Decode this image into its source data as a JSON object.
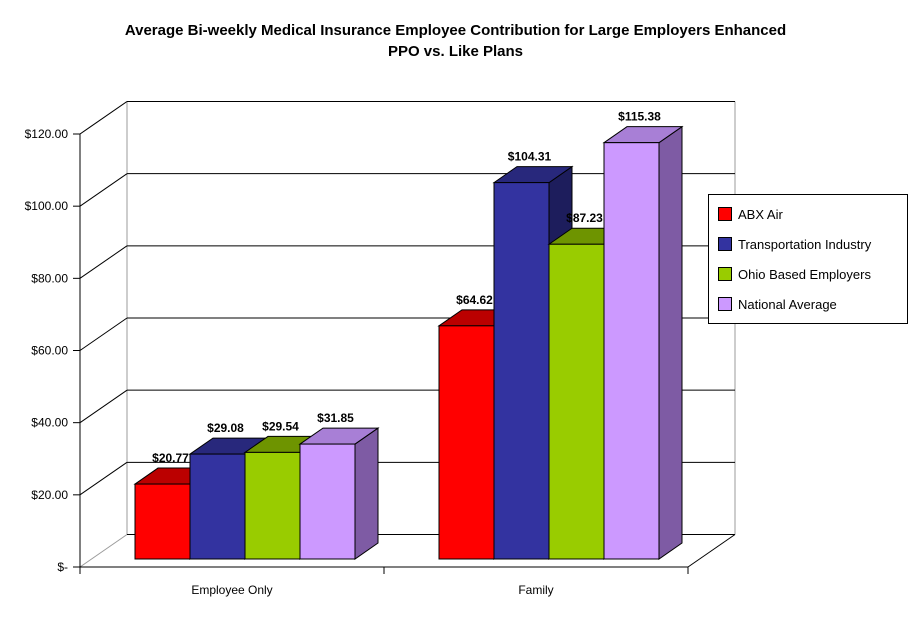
{
  "page": {
    "background": "#FFFFFF"
  },
  "chart_data": {
    "type": "bar",
    "variant": "3d-clustered-column",
    "title": "Average Bi-weekly Medical Insurance Employee Contribution for Large Employers Enhanced PPO vs. Like Plans",
    "title_lines": [
      "Average Bi-weekly Medical Insurance Employee Contribution for Large Employers Enhanced",
      "PPO vs. Like Plans"
    ],
    "categories": [
      "Employee Only",
      "Family"
    ],
    "series": [
      {
        "name": "ABX Air",
        "color": "#FF0000",
        "top_color": "#BB0000",
        "side_color": "#800000",
        "values": [
          20.77,
          64.62
        ],
        "labels": [
          "$20.77",
          "$64.62"
        ]
      },
      {
        "name": "Transportation Industry",
        "color": "#3333A0",
        "top_color": "#28287C",
        "side_color": "#1D1D5C",
        "values": [
          29.08,
          104.31
        ],
        "labels": [
          "$29.08",
          "$104.31"
        ]
      },
      {
        "name": "Ohio Based Employers",
        "color": "#99CC00",
        "top_color": "#6E9400",
        "side_color": "#527000",
        "values": [
          29.54,
          87.23
        ],
        "labels": [
          "$29.54",
          "$87.23"
        ]
      },
      {
        "name": "National Average",
        "color": "#CC99FF",
        "top_color": "#A87FD6",
        "side_color": "#7E5BA4",
        "values": [
          31.85,
          115.38
        ],
        "labels": [
          "$31.85",
          "$115.38"
        ]
      }
    ],
    "xlabel": "",
    "ylabel": "",
    "ylim": [
      0,
      120
    ],
    "ytick_interval": 20,
    "ytick_labels": [
      "$-",
      "$20.00",
      "$40.00",
      "$60.00",
      "$80.00",
      "$100.00",
      "$120.00"
    ],
    "grid": true,
    "legend_position": "right",
    "axis_color": "#000000",
    "wall_edge_color": "#9B9B9B",
    "text_color": "#000000"
  }
}
